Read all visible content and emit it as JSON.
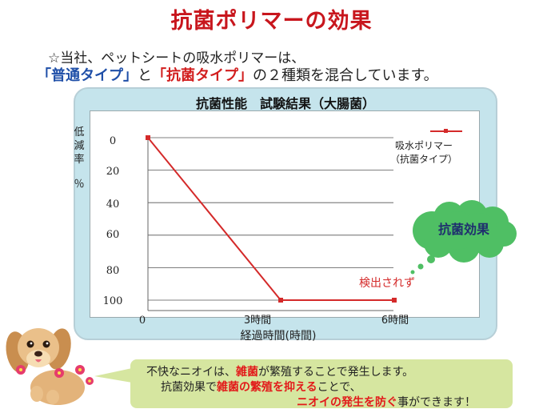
{
  "page": {
    "title": "抗菌ポリマーの効果",
    "intro_line1": "☆当社、ペットシートの吸水ポリマーは、",
    "intro_line2": {
      "part1": "「普通タイプ」",
      "part2": "と",
      "part3": "「抗菌タイプ」",
      "part4": "の２種類を混合しています。"
    }
  },
  "chart_data": {
    "type": "line",
    "title": "抗菌性能　試験結果（大腸菌）",
    "ylabel": "低減率％",
    "xlabel": "経過時間(時間)",
    "x_tick_origin": "0",
    "categories": [
      "0",
      "3時間",
      "6時間"
    ],
    "y_ticks": [
      "0",
      "20",
      "40",
      "60",
      "80",
      "100"
    ],
    "ylim": [
      0,
      100
    ],
    "y_inverted": true,
    "series": [
      {
        "name": "吸水ポリマー（抗菌タイプ）",
        "legend_line1": "吸水ポリマー",
        "legend_line2": "（抗菌タイプ）",
        "values": [
          0,
          100,
          100
        ],
        "color": "#d42a2a"
      }
    ],
    "annotation": "検出されず",
    "bubble_label": "抗菌効果",
    "grid": true,
    "legend_position": "top-right"
  },
  "note": {
    "line1_a": "不快なニオイは、",
    "line1_b": "雑菌",
    "line1_c": "が繁殖することで発生します。",
    "line2_a": "抗菌効果で",
    "line2_b": "雑菌の繁殖を抑える",
    "line2_c": "ことで、",
    "line3_a": "ニオイの発生を防ぐ",
    "line3_b": "事ができます！"
  },
  "colors": {
    "title": "#c8161d",
    "accent_blue": "#1f4fa8",
    "line": "#d42a2a",
    "panel": "#c5e4ec",
    "bubble": "#4fbf64",
    "note_bg": "#d6e6a0"
  }
}
